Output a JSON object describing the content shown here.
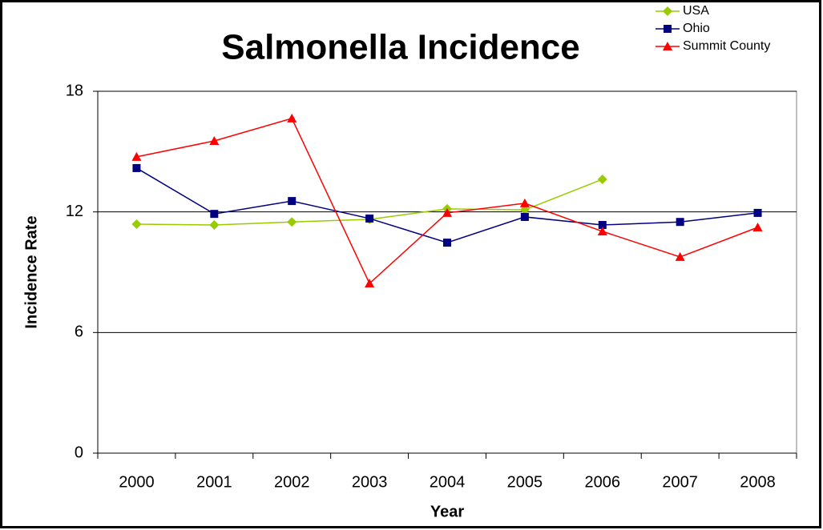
{
  "chart_data": {
    "type": "line",
    "title": "Salmonella Incidence",
    "x_label": "Year",
    "y_label": "Incidence Rate",
    "categories": [
      "2000",
      "2001",
      "2002",
      "2003",
      "2004",
      "2005",
      "2006",
      "2007",
      "2008"
    ],
    "series": [
      {
        "name": "USA",
        "color": "#99cc00",
        "marker": "diamond",
        "values": [
          11.39,
          11.35,
          11.5,
          11.63,
          12.15,
          12.1,
          13.62,
          null,
          null
        ]
      },
      {
        "name": "Ohio",
        "color": "#000080",
        "marker": "square",
        "values": [
          14.18,
          11.9,
          12.54,
          11.67,
          10.47,
          11.75,
          11.35,
          11.5,
          11.95
        ]
      },
      {
        "name": "Summit County",
        "color": "#ff0000",
        "marker": "triangle",
        "values": [
          14.74,
          15.53,
          16.65,
          8.44,
          11.95,
          12.43,
          11.03,
          9.76,
          11.23
        ]
      }
    ],
    "ylim": [
      0,
      18
    ],
    "yticks": [
      0,
      6,
      12,
      18
    ],
    "grid": true,
    "legend": "top-right"
  }
}
